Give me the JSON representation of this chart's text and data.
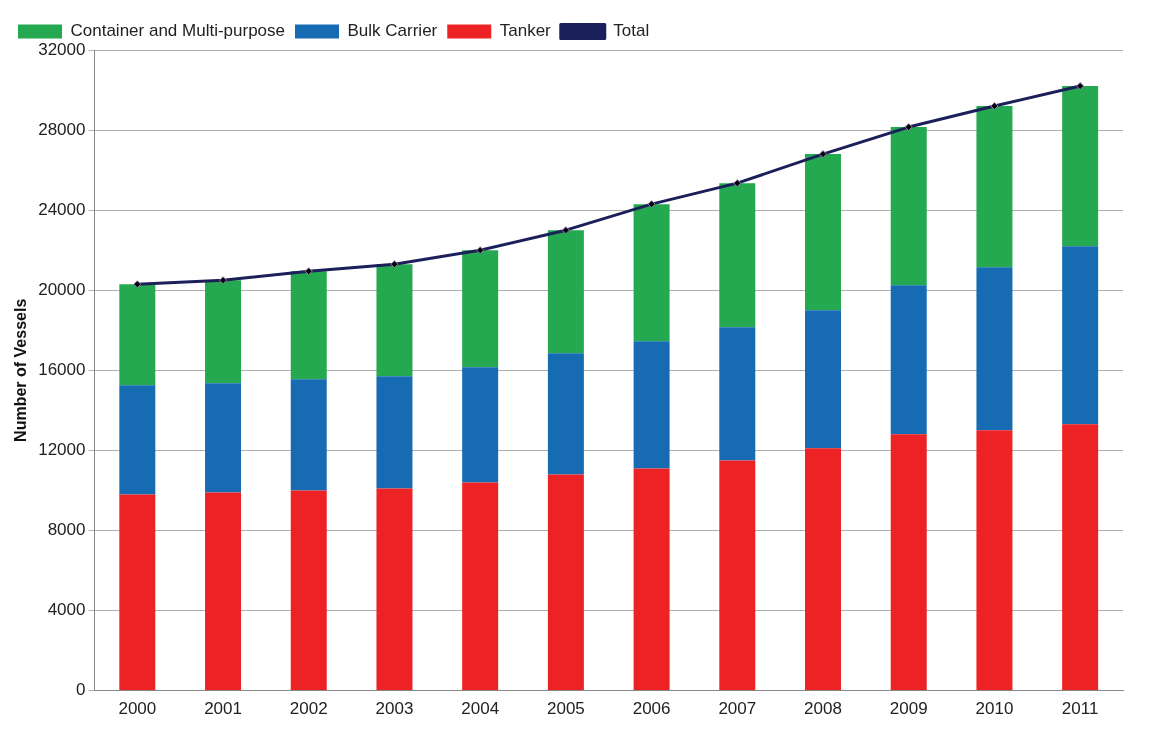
{
  "chart_data": {
    "type": "bar",
    "stacked": true,
    "ylabel": "Number of Vessels",
    "categories": [
      "2000",
      "2001",
      "2002",
      "2003",
      "2004",
      "2005",
      "2006",
      "2007",
      "2008",
      "2009",
      "2010",
      "2011"
    ],
    "series": [
      {
        "name": "Tanker",
        "color": "#ed2224",
        "values": [
          9800,
          9900,
          10000,
          10100,
          10400,
          10800,
          11100,
          11500,
          12100,
          12800,
          13000,
          13300
        ]
      },
      {
        "name": "Bulk Carrier",
        "color": "#176bb3",
        "values": [
          5450,
          5450,
          5550,
          5600,
          5750,
          6050,
          6350,
          6650,
          6900,
          7450,
          8150,
          8900
        ]
      },
      {
        "name": "Container and Multi-purpose",
        "color": "#24a850",
        "values": [
          5050,
          5150,
          5400,
          5600,
          5850,
          6150,
          6850,
          7200,
          7800,
          7900,
          8050,
          8000
        ]
      },
      {
        "name": "Total",
        "type": "line",
        "color": "#1b1f5a",
        "marker": "diamond",
        "values": [
          20300,
          20500,
          20950,
          21300,
          22000,
          23000,
          24300,
          25350,
          26800,
          28150,
          29200,
          30200
        ]
      }
    ],
    "ylim": [
      0,
      32000
    ],
    "yticks": [
      0,
      4000,
      8000,
      12000,
      16000,
      20000,
      24000,
      28000,
      32000
    ],
    "grid": "y",
    "legend": "top left"
  }
}
